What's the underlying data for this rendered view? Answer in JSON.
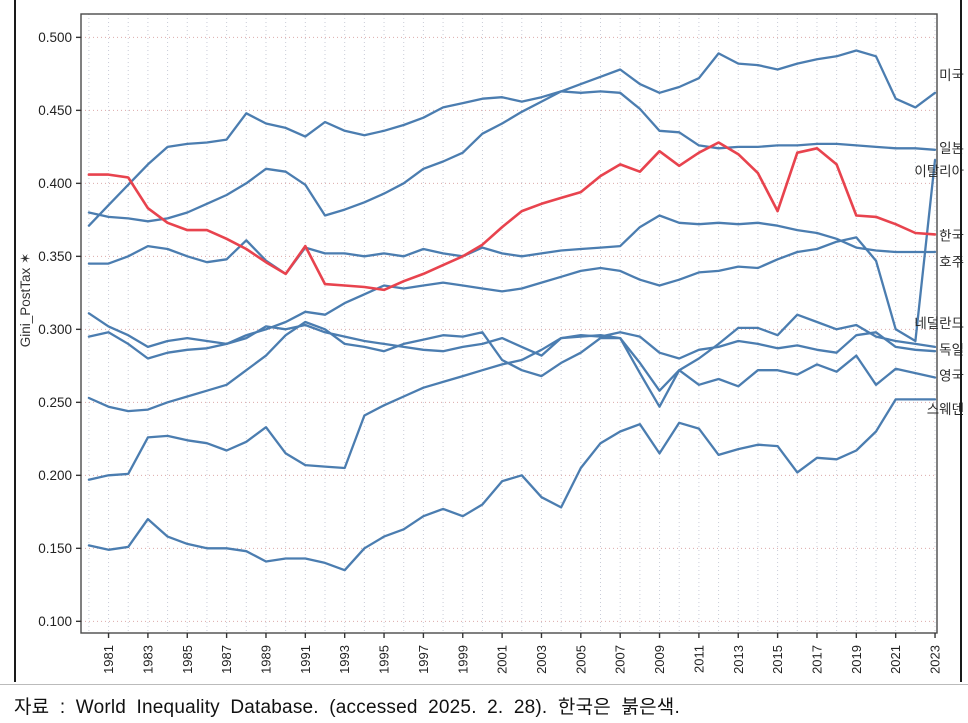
{
  "figure": {
    "caption": "자료 : World Inequality Database. (accessed 2025. 2. 28). 한국은 붉은색."
  },
  "chart_data": {
    "type": "line",
    "title": "",
    "xlabel": "",
    "ylabel": "Gini_PostTax ✶",
    "ylim": [
      0.092,
      0.516
    ],
    "xlim": [
      1979.6,
      2023.1
    ],
    "yticks": [
      0.1,
      0.15,
      0.2,
      0.25,
      0.3,
      0.35,
      0.4,
      0.45,
      0.5
    ],
    "xticks": [
      1981,
      1983,
      1985,
      1987,
      1989,
      1991,
      1993,
      1995,
      1997,
      1999,
      2001,
      2003,
      2005,
      2007,
      2009,
      2011,
      2013,
      2015,
      2017,
      2019,
      2021,
      2023
    ],
    "grid": "dotted",
    "legend_position": "right-edge-labels",
    "colors": {
      "blue": "#4b7db0",
      "red": "#e8434e"
    },
    "x": [
      1980,
      1981,
      1982,
      1983,
      1984,
      1985,
      1986,
      1987,
      1988,
      1989,
      1990,
      1991,
      1992,
      1993,
      1994,
      1995,
      1996,
      1997,
      1998,
      1999,
      2000,
      2001,
      2002,
      2003,
      2004,
      2005,
      2006,
      2007,
      2008,
      2009,
      2010,
      2011,
      2012,
      2013,
      2014,
      2015,
      2016,
      2017,
      2018,
      2019,
      2020,
      2021,
      2022,
      2023
    ],
    "series": [
      {
        "name": "미국",
        "color": "#4b7db0",
        "label_value": 0.474,
        "values": [
          0.38,
          0.377,
          0.376,
          0.374,
          0.376,
          0.38,
          0.386,
          0.392,
          0.4,
          0.41,
          0.408,
          0.399,
          0.378,
          0.382,
          0.387,
          0.393,
          0.4,
          0.41,
          0.415,
          0.421,
          0.434,
          0.441,
          0.449,
          0.456,
          0.463,
          0.468,
          0.473,
          0.478,
          0.468,
          0.462,
          0.466,
          0.472,
          0.489,
          0.482,
          0.481,
          0.478,
          0.482,
          0.485,
          0.487,
          0.491,
          0.487,
          0.458,
          0.452,
          0.462
        ]
      },
      {
        "name": "일본",
        "color": "#4b7db0",
        "label_value": 0.424,
        "values": [
          0.371,
          0.385,
          0.399,
          0.413,
          0.425,
          0.427,
          0.428,
          0.43,
          0.448,
          0.441,
          0.438,
          0.432,
          0.442,
          0.436,
          0.433,
          0.436,
          0.44,
          0.445,
          0.452,
          0.455,
          0.458,
          0.459,
          0.456,
          0.459,
          0.463,
          0.462,
          0.463,
          0.462,
          0.451,
          0.436,
          0.435,
          0.426,
          0.424,
          0.425,
          0.425,
          0.426,
          0.426,
          0.427,
          0.427,
          0.426,
          0.425,
          0.424,
          0.424,
          0.423
        ]
      },
      {
        "name": "이탈리아",
        "color": "#4b7db0",
        "label_value": 0.408,
        "values": [
          0.295,
          0.298,
          0.29,
          0.28,
          0.284,
          0.286,
          0.287,
          0.29,
          0.296,
          0.3,
          0.305,
          0.312,
          0.31,
          0.318,
          0.324,
          0.33,
          0.328,
          0.33,
          0.332,
          0.33,
          0.328,
          0.326,
          0.328,
          0.332,
          0.336,
          0.34,
          0.342,
          0.34,
          0.334,
          0.33,
          0.334,
          0.339,
          0.34,
          0.343,
          0.342,
          0.348,
          0.353,
          0.355,
          0.36,
          0.363,
          0.347,
          0.3,
          0.292,
          0.416
        ]
      },
      {
        "name": "호주",
        "color": "#4b7db0",
        "label_value": 0.346,
        "values": [
          0.345,
          0.345,
          0.35,
          0.357,
          0.355,
          0.35,
          0.346,
          0.348,
          0.361,
          0.347,
          0.338,
          0.356,
          0.352,
          0.352,
          0.35,
          0.352,
          0.35,
          0.355,
          0.352,
          0.35,
          0.356,
          0.352,
          0.35,
          0.352,
          0.354,
          0.355,
          0.356,
          0.357,
          0.37,
          0.378,
          0.373,
          0.372,
          0.373,
          0.372,
          0.373,
          0.371,
          0.368,
          0.366,
          0.362,
          0.356,
          0.354,
          0.353,
          0.353,
          0.353
        ]
      },
      {
        "name": "네덜란드",
        "color": "#4b7db0",
        "label_value": 0.304,
        "values": [
          0.197,
          0.2,
          0.201,
          0.226,
          0.227,
          0.224,
          0.222,
          0.217,
          0.223,
          0.233,
          0.215,
          0.207,
          0.206,
          0.205,
          0.241,
          0.248,
          0.254,
          0.26,
          0.264,
          0.268,
          0.272,
          0.276,
          0.279,
          0.286,
          0.294,
          0.295,
          0.296,
          0.294,
          0.27,
          0.247,
          0.272,
          0.28,
          0.29,
          0.301,
          0.301,
          0.296,
          0.31,
          0.305,
          0.3,
          0.303,
          0.295,
          0.292,
          0.29,
          0.288
        ]
      },
      {
        "name": "독일",
        "color": "#4b7db0",
        "label_value": 0.286,
        "values": [
          0.311,
          0.302,
          0.296,
          0.288,
          0.292,
          0.294,
          0.292,
          0.29,
          0.294,
          0.302,
          0.3,
          0.303,
          0.298,
          0.295,
          0.292,
          0.29,
          0.288,
          0.286,
          0.285,
          0.288,
          0.29,
          0.294,
          0.288,
          0.282,
          0.294,
          0.296,
          0.295,
          0.298,
          0.295,
          0.284,
          0.28,
          0.286,
          0.288,
          0.292,
          0.29,
          0.287,
          0.289,
          0.286,
          0.284,
          0.296,
          0.298,
          0.288,
          0.286,
          0.285
        ]
      },
      {
        "name": "영국",
        "color": "#4b7db0",
        "label_value": 0.268,
        "values": [
          0.253,
          0.247,
          0.244,
          0.245,
          0.25,
          0.254,
          0.258,
          0.262,
          0.272,
          0.282,
          0.296,
          0.305,
          0.3,
          0.29,
          0.288,
          0.285,
          0.29,
          0.293,
          0.296,
          0.295,
          0.298,
          0.279,
          0.272,
          0.268,
          0.277,
          0.284,
          0.294,
          0.294,
          0.277,
          0.258,
          0.272,
          0.262,
          0.266,
          0.261,
          0.272,
          0.272,
          0.269,
          0.276,
          0.271,
          0.282,
          0.262,
          0.273,
          0.27,
          0.267
        ]
      },
      {
        "name": "스웨덴",
        "color": "#4b7db0",
        "label_value": 0.245,
        "values": [
          0.152,
          0.149,
          0.151,
          0.17,
          0.158,
          0.153,
          0.15,
          0.15,
          0.148,
          0.141,
          0.143,
          0.143,
          0.14,
          0.135,
          0.15,
          0.158,
          0.163,
          0.172,
          0.177,
          0.172,
          0.18,
          0.196,
          0.2,
          0.185,
          0.178,
          0.205,
          0.222,
          0.23,
          0.235,
          0.215,
          0.236,
          0.232,
          0.214,
          0.218,
          0.221,
          0.22,
          0.202,
          0.212,
          0.211,
          0.217,
          0.23,
          0.252,
          0.252,
          0.252
        ]
      },
      {
        "name": "한국",
        "color": "#e8434e",
        "label_value": 0.364,
        "values": [
          0.406,
          0.406,
          0.404,
          0.383,
          0.373,
          0.368,
          0.368,
          0.362,
          0.355,
          0.346,
          0.338,
          0.357,
          0.331,
          0.33,
          0.329,
          0.327,
          0.333,
          0.338,
          0.344,
          0.35,
          0.358,
          0.37,
          0.381,
          0.386,
          0.39,
          0.394,
          0.405,
          0.413,
          0.408,
          0.422,
          0.412,
          0.421,
          0.428,
          0.42,
          0.407,
          0.381,
          0.421,
          0.424,
          0.413,
          0.378,
          0.377,
          0.372,
          0.366,
          0.365
        ]
      }
    ]
  }
}
